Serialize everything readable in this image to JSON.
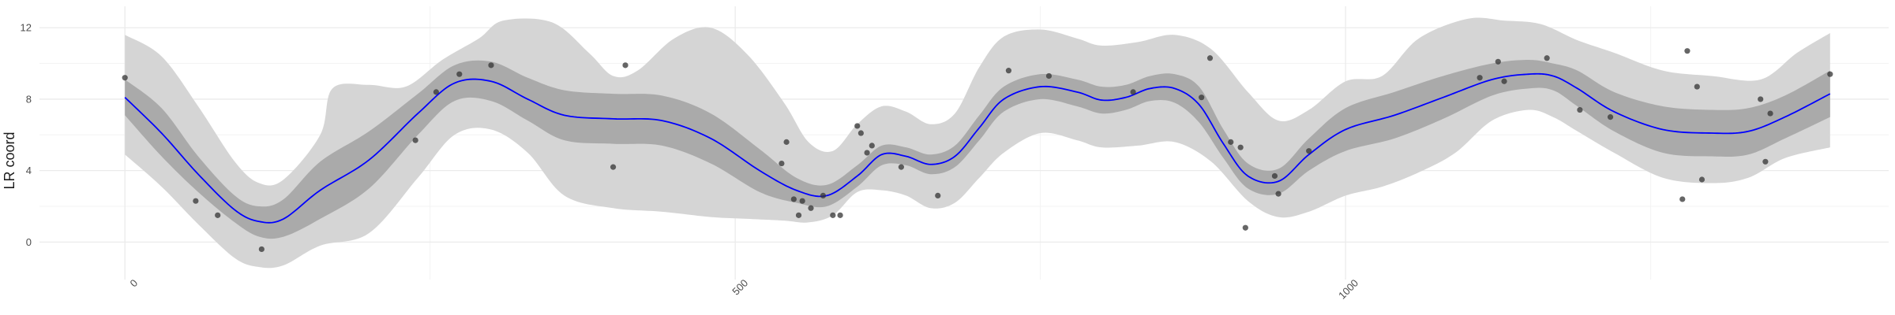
{
  "chart_data": {
    "type": "line",
    "title": "",
    "xlabel": "",
    "ylabel": "LR coord",
    "xlim": [
      -70,
      1445
    ],
    "ylim": [
      -2.1,
      13.2
    ],
    "x_ticks": [
      0,
      500,
      1000
    ],
    "x_tick_labels": [
      "0",
      "500",
      "1000"
    ],
    "y_ticks": [
      0,
      4,
      8,
      12
    ],
    "y_tick_labels": [
      "0",
      "4",
      "8",
      "12"
    ],
    "grid": true,
    "legend": "none",
    "colors": {
      "mean_line": "#0000ff",
      "inner_band": "#aaaaaa",
      "outer_band": "#d5d5d5",
      "points": "#333333",
      "grid": "#ebebeb"
    },
    "series": [
      {
        "kind": "mean",
        "x": [
          0,
          30,
          60,
          90,
          110,
          130,
          160,
          200,
          240,
          270,
          300,
          330,
          360,
          400,
          440,
          480,
          520,
          550,
          575,
          600,
          620,
          640,
          660,
          680,
          700,
          720,
          750,
          780,
          800,
          820,
          840,
          860,
          880,
          900,
          920,
          945,
          970,
          1000,
          1040,
          1080,
          1120,
          1150,
          1170,
          1190,
          1220,
          1260,
          1300,
          1330,
          1360,
          1397
        ],
        "y": [
          8.1,
          6.1,
          3.8,
          1.8,
          1.15,
          1.3,
          2.9,
          4.6,
          7.2,
          8.9,
          9.0,
          8.0,
          7.1,
          6.9,
          6.8,
          5.8,
          4.0,
          2.9,
          2.6,
          3.7,
          4.9,
          4.8,
          4.35,
          4.8,
          6.4,
          8.0,
          8.7,
          8.4,
          7.95,
          8.1,
          8.6,
          8.6,
          7.7,
          5.5,
          3.7,
          3.4,
          4.9,
          6.3,
          7.1,
          8.1,
          9.1,
          9.4,
          9.3,
          8.6,
          7.3,
          6.3,
          6.1,
          6.2,
          7.0,
          8.3
        ]
      },
      {
        "kind": "inner_band_upper",
        "x": [
          0,
          30,
          60,
          90,
          110,
          130,
          160,
          200,
          240,
          270,
          300,
          330,
          360,
          400,
          440,
          480,
          520,
          550,
          575,
          600,
          620,
          640,
          660,
          680,
          700,
          720,
          750,
          780,
          800,
          820,
          840,
          860,
          880,
          900,
          920,
          945,
          970,
          1000,
          1040,
          1080,
          1120,
          1150,
          1170,
          1190,
          1220,
          1260,
          1300,
          1330,
          1360,
          1397
        ],
        "y": [
          9.1,
          7.5,
          4.8,
          2.6,
          2.0,
          2.4,
          4.5,
          6.2,
          8.3,
          9.9,
          10.1,
          9.2,
          8.5,
          8.3,
          8.2,
          7.2,
          5.2,
          3.6,
          3.2,
          4.3,
          5.4,
          5.3,
          4.9,
          5.4,
          7.1,
          8.7,
          9.4,
          9.1,
          8.7,
          8.8,
          9.3,
          9.4,
          8.7,
          6.3,
          4.4,
          4.1,
          5.8,
          7.5,
          8.4,
          9.3,
          10.0,
          10.2,
          10.0,
          9.6,
          8.4,
          7.6,
          7.4,
          7.5,
          8.2,
          9.6
        ]
      },
      {
        "kind": "inner_band_lower",
        "x": [
          0,
          30,
          60,
          90,
          110,
          130,
          160,
          200,
          240,
          270,
          300,
          330,
          360,
          400,
          440,
          480,
          520,
          550,
          575,
          600,
          620,
          640,
          660,
          680,
          700,
          720,
          750,
          780,
          800,
          820,
          840,
          860,
          880,
          900,
          920,
          945,
          970,
          1000,
          1040,
          1080,
          1120,
          1150,
          1170,
          1190,
          1220,
          1260,
          1300,
          1330,
          1360,
          1397
        ],
        "y": [
          7.1,
          4.8,
          2.8,
          1.1,
          0.3,
          0.3,
          1.3,
          3.0,
          6.0,
          7.9,
          7.9,
          6.8,
          5.7,
          5.5,
          5.4,
          4.4,
          2.8,
          2.2,
          2.0,
          3.1,
          4.3,
          4.3,
          3.8,
          4.2,
          5.7,
          7.3,
          8.0,
          7.6,
          7.2,
          7.4,
          7.9,
          7.8,
          6.7,
          4.7,
          3.0,
          2.7,
          4.0,
          5.1,
          5.8,
          6.9,
          8.2,
          8.6,
          8.5,
          7.6,
          6.2,
          5.0,
          4.8,
          4.9,
          5.8,
          7.0
        ]
      },
      {
        "kind": "outer_band_upper",
        "x": [
          0,
          30,
          60,
          90,
          110,
          130,
          160,
          170,
          200,
          230,
          260,
          290,
          310,
          350,
          380,
          400,
          420,
          450,
          480,
          510,
          540,
          560,
          580,
          600,
          620,
          640,
          660,
          680,
          700,
          720,
          750,
          780,
          800,
          830,
          860,
          890,
          920,
          945,
          970,
          1000,
          1030,
          1060,
          1100,
          1130,
          1160,
          1190,
          1220,
          1260,
          1300,
          1340,
          1370,
          1397
        ],
        "y": [
          11.6,
          10.4,
          7.6,
          4.5,
          3.3,
          3.5,
          6.0,
          8.6,
          8.8,
          8.7,
          10.2,
          11.4,
          12.4,
          12.3,
          10.6,
          9.3,
          9.6,
          11.4,
          12.0,
          10.5,
          7.8,
          5.6,
          5.1,
          6.6,
          7.6,
          7.3,
          6.6,
          7.2,
          9.8,
          11.5,
          11.9,
          11.4,
          11.0,
          11.2,
          11.6,
          10.8,
          8.4,
          6.8,
          7.4,
          9.0,
          9.3,
          11.4,
          12.5,
          12.4,
          12.2,
          11.3,
          10.6,
          9.6,
          9.3,
          9.1,
          10.6,
          11.7
        ]
      },
      {
        "kind": "outer_band_lower",
        "x": [
          0,
          30,
          60,
          90,
          110,
          130,
          160,
          200,
          240,
          270,
          300,
          330,
          360,
          400,
          440,
          480,
          510,
          540,
          560,
          580,
          600,
          620,
          640,
          660,
          680,
          700,
          720,
          750,
          780,
          800,
          830,
          860,
          890,
          920,
          945,
          970,
          1000,
          1030,
          1060,
          1090,
          1120,
          1150,
          1170,
          1190,
          1220,
          1260,
          1300,
          1330,
          1360,
          1397
        ],
        "y": [
          4.9,
          3.1,
          1.0,
          -0.9,
          -1.4,
          -1.3,
          -0.2,
          0.5,
          3.6,
          6.0,
          6.3,
          5.0,
          2.6,
          1.9,
          1.7,
          1.4,
          1.3,
          1.2,
          1.1,
          1.5,
          2.8,
          2.9,
          2.6,
          1.9,
          2.2,
          3.6,
          5.0,
          6.1,
          5.7,
          5.3,
          5.4,
          5.6,
          4.5,
          2.3,
          1.4,
          1.7,
          2.6,
          3.1,
          3.9,
          5.0,
          6.8,
          7.4,
          7.0,
          6.2,
          5.0,
          3.6,
          3.3,
          3.6,
          4.7,
          5.3
        ]
      }
    ],
    "points": {
      "x": [
        0,
        58,
        76,
        112,
        238,
        255,
        274,
        300,
        400,
        410,
        538,
        542,
        548,
        552,
        555,
        562,
        572,
        580,
        586,
        600,
        603,
        608,
        612,
        636,
        666,
        724,
        757,
        826,
        889,
        882,
        906,
        914,
        918,
        942,
        945,
        970,
        1110,
        1125,
        1130,
        1165,
        1192,
        1217,
        1276,
        1280,
        1288,
        1292,
        1340,
        1344,
        1348,
        1397
      ],
      "y": [
        9.2,
        2.3,
        1.5,
        -0.4,
        5.7,
        8.4,
        9.4,
        9.9,
        4.2,
        9.9,
        4.4,
        5.6,
        2.4,
        1.5,
        2.3,
        1.9,
        2.6,
        1.5,
        1.5,
        6.5,
        6.1,
        5.0,
        5.4,
        4.2,
        2.6,
        9.6,
        9.3,
        8.4,
        10.3,
        8.1,
        5.6,
        5.3,
        0.8,
        3.7,
        2.7,
        5.1,
        9.2,
        10.1,
        9.0,
        10.3,
        7.4,
        7.0,
        2.4,
        10.7,
        8.7,
        3.5,
        8.0,
        4.5,
        7.2,
        9.4
      ]
    }
  }
}
